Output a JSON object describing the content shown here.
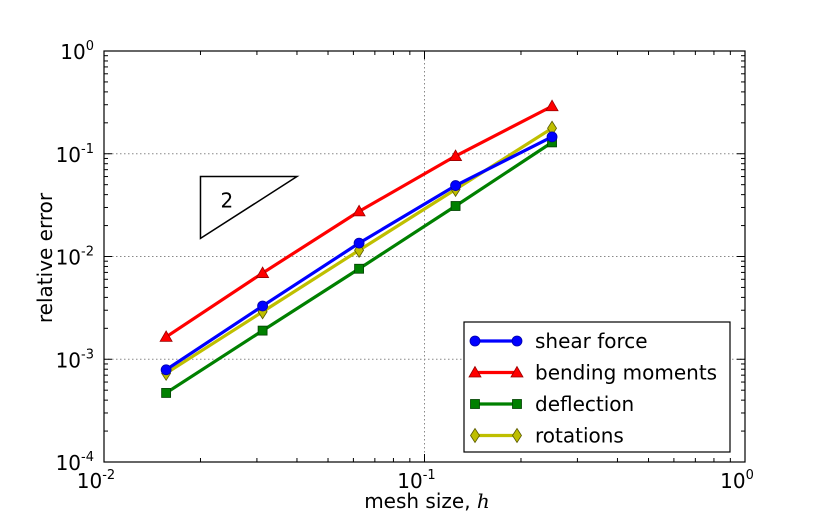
{
  "chart_data": {
    "type": "line",
    "xscale": "log",
    "yscale": "log",
    "xlim": [
      0.01,
      1
    ],
    "ylim": [
      0.0001,
      1
    ],
    "grid": true,
    "xlabel": "mesh size, ",
    "xlabel_symbol": "h",
    "ylabel": "relative error",
    "x_ticks": [
      {
        "value": 0.01,
        "base": "10",
        "exp": "-2"
      },
      {
        "value": 0.1,
        "base": "10",
        "exp": "-1"
      },
      {
        "value": 1,
        "base": "10",
        "exp": "0"
      }
    ],
    "y_ticks": [
      {
        "value": 0.0001,
        "base": "10",
        "exp": "-4"
      },
      {
        "value": 0.001,
        "base": "10",
        "exp": "-3"
      },
      {
        "value": 0.01,
        "base": "10",
        "exp": "-2"
      },
      {
        "value": 0.1,
        "base": "10",
        "exp": "-1"
      },
      {
        "value": 1,
        "base": "10",
        "exp": "0"
      }
    ],
    "x": [
      0.015625,
      0.03125,
      0.0625,
      0.125,
      0.25
    ],
    "series": [
      {
        "name": "shear force",
        "color": "#0000ff",
        "marker": "circle",
        "values": [
          0.00079,
          0.0033,
          0.0135,
          0.049,
          0.146
        ]
      },
      {
        "name": "bending moments",
        "color": "#ff0000",
        "marker": "triangle",
        "values": [
          0.00165,
          0.0069,
          0.0275,
          0.095,
          0.29
        ]
      },
      {
        "name": "deflection",
        "color": "#008000",
        "marker": "square",
        "values": [
          0.00047,
          0.0019,
          0.0076,
          0.031,
          0.129
        ]
      },
      {
        "name": "rotations",
        "color": "#bfbf00",
        "marker": "diamond",
        "values": [
          0.00073,
          0.0029,
          0.0115,
          0.045,
          0.177
        ]
      }
    ],
    "legend_position": "lower-right",
    "annotation": {
      "label": "2",
      "x_start": 0.02,
      "x_end": 0.04,
      "y_start": 0.015,
      "y_end": 0.06
    }
  }
}
